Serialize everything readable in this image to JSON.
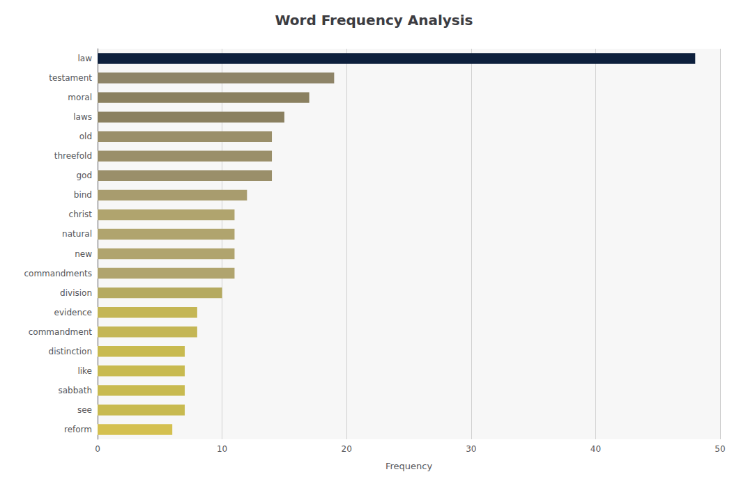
{
  "chart_data": {
    "type": "bar",
    "orientation": "horizontal",
    "title": "Word Frequency Analysis",
    "xlabel": "Frequency",
    "categories": [
      "law",
      "testament",
      "moral",
      "laws",
      "old",
      "threefold",
      "god",
      "bind",
      "christ",
      "natural",
      "new",
      "commandments",
      "division",
      "evidence",
      "commandment",
      "distinction",
      "like",
      "sabbath",
      "see",
      "reform"
    ],
    "values": [
      48,
      19,
      17,
      15,
      14,
      14,
      14,
      12,
      11,
      11,
      11,
      11,
      10,
      8,
      8,
      7,
      7,
      7,
      7,
      6
    ],
    "colors": [
      "#0d1f3c",
      "#8e8468",
      "#8a8060",
      "#8a8060",
      "#9a8f6a",
      "#9a8f6a",
      "#9a8f6a",
      "#a89c6e",
      "#b0a46e",
      "#b0a46e",
      "#b0a46e",
      "#b0a46e",
      "#b5aa60",
      "#c4b655",
      "#c4b655",
      "#c8ba50",
      "#c8ba50",
      "#c8ba50",
      "#c8ba50",
      "#d4c050"
    ],
    "xlim": [
      0,
      50
    ],
    "xticks": [
      0,
      10,
      20,
      30,
      40,
      50
    ],
    "grid": true
  }
}
